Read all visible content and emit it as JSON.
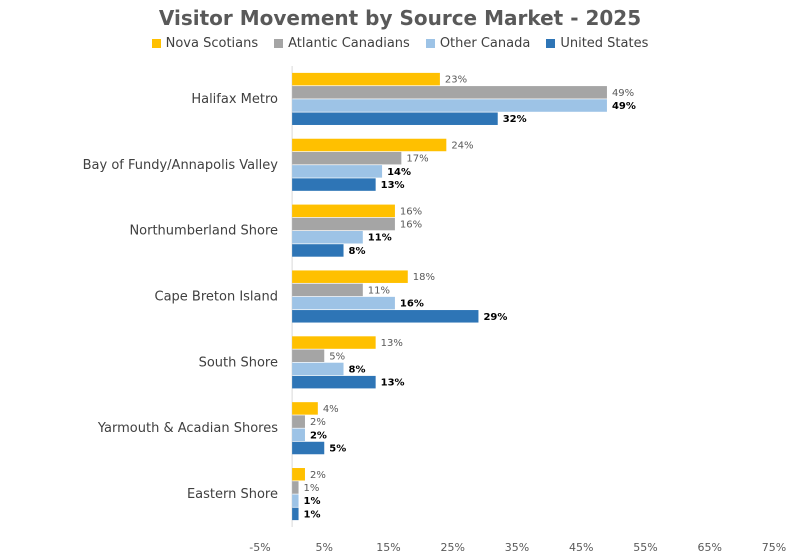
{
  "chart_data": {
    "type": "bar",
    "orientation": "horizontal",
    "title": "Visitor Movement by Source Market - 2025",
    "categories": [
      "Halifax Metro",
      "Bay of Fundy/Annapolis Valley",
      "Northumberland Shore",
      "Cape Breton Island",
      "South Shore",
      "Yarmouth & Acadian Shores",
      "Eastern Shore"
    ],
    "series": [
      {
        "name": "Nova Scotians",
        "color": "#FFC000",
        "values": [
          23,
          24,
          16,
          18,
          13,
          4,
          2
        ],
        "labels": [
          "23%",
          "24%",
          "16%",
          "18%",
          "13%",
          "4%",
          "2%"
        ]
      },
      {
        "name": "Atlantic Canadians",
        "color": "#A5A5A5",
        "values": [
          49,
          17,
          16,
          11,
          5,
          2,
          1
        ],
        "labels": [
          "49%",
          "17%",
          "16%",
          "11%",
          "5%",
          "2%",
          "1%"
        ]
      },
      {
        "name": "Other Canada",
        "color": "#9DC3E6",
        "values": [
          49,
          14,
          11,
          16,
          8,
          2,
          1
        ],
        "labels": [
          "49%",
          "14%",
          "11%",
          "16%",
          "8%",
          "2%",
          "1%"
        ]
      },
      {
        "name": "United States",
        "color": "#2E75B6",
        "values": [
          32,
          13,
          8,
          29,
          13,
          5,
          1
        ],
        "labels": [
          "32%",
          "13%",
          "8%",
          "29%",
          "13%",
          "5%",
          "1%"
        ]
      }
    ],
    "xlim": [
      -5,
      75
    ],
    "x_ticks": [
      "-5%",
      "5%",
      "15%",
      "25%",
      "35%",
      "45%",
      "55%",
      "65%",
      "75%"
    ],
    "legend_position": "top",
    "grid": false
  }
}
